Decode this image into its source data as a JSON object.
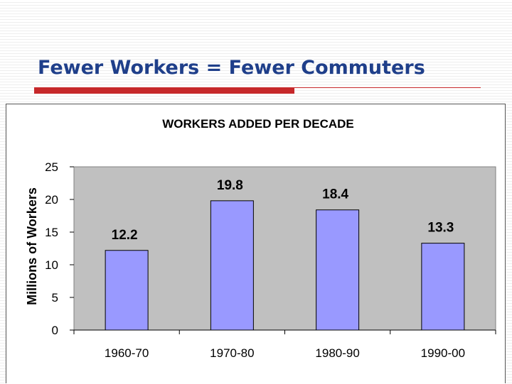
{
  "slide": {
    "title": "Fewer Workers = Fewer Commuters"
  },
  "colors": {
    "title": "#1f3f8a",
    "accent_rule": "#c6282a",
    "bar_fill": "#9999ff",
    "plot_background": "#c0c0c0"
  },
  "chart_data": {
    "type": "bar",
    "title": "WORKERS ADDED PER DECADE",
    "xlabel": "",
    "ylabel": "Millions of Workers",
    "categories": [
      "1960-70",
      "1970-80",
      "1980-90",
      "1990-00"
    ],
    "values": [
      12.2,
      19.8,
      18.4,
      13.3
    ],
    "data_labels": [
      "12.2",
      "19.8",
      "18.4",
      "13.3"
    ],
    "ylim": [
      0,
      25
    ],
    "yticks": [
      0,
      5,
      10,
      15,
      20,
      25
    ],
    "grid": false,
    "legend": "none"
  }
}
